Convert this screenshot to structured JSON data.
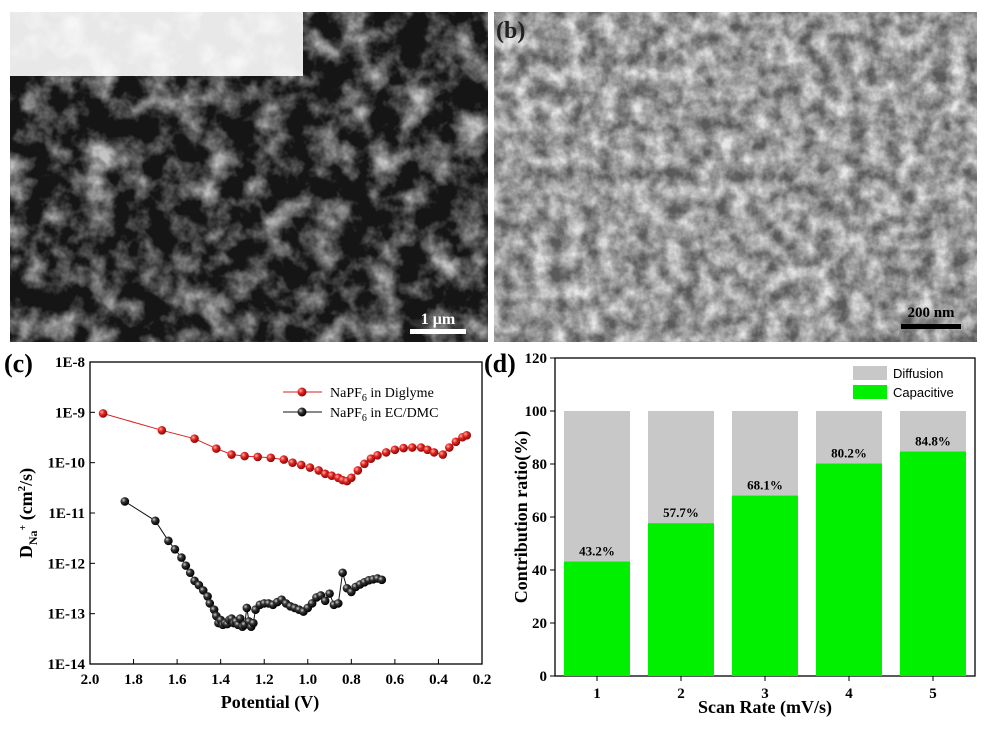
{
  "panels": {
    "a": {
      "label": "",
      "scale_bar": "1 μm"
    },
    "b": {
      "label": "(b)",
      "scale_bar": "200 nm"
    },
    "c": {
      "label": "(c)"
    },
    "d": {
      "label": "(d)"
    }
  },
  "chart_data": [
    {
      "type": "line",
      "panel": "c",
      "xlabel": "Potential (V)",
      "ylabel": "D_Na+ (cm²/s)",
      "xlim": [
        2.0,
        0.2
      ],
      "x_reversed": true,
      "ylim": [
        1e-14,
        1e-08
      ],
      "log_y": true,
      "x_ticks": [
        "2.0",
        "1.8",
        "1.6",
        "1.4",
        "1.2",
        "1.0",
        "0.8",
        "0.6",
        "0.4",
        "0.2"
      ],
      "y_ticks": [
        "1E-14",
        "1E-13",
        "1E-12",
        "1E-11",
        "1E-10",
        "1E-9",
        "1E-8"
      ],
      "legend_position": "top-right",
      "series": [
        {
          "name": "NaPF6 in Diglyme",
          "color": "#d9201e",
          "x": [
            1.94,
            1.67,
            1.52,
            1.42,
            1.35,
            1.29,
            1.23,
            1.17,
            1.11,
            1.07,
            1.03,
            0.99,
            0.95,
            0.92,
            0.89,
            0.86,
            0.84,
            0.82,
            0.8,
            0.77,
            0.74,
            0.71,
            0.68,
            0.64,
            0.6,
            0.56,
            0.52,
            0.48,
            0.45,
            0.42,
            0.38,
            0.35,
            0.32,
            0.29,
            0.27
          ],
          "y": [
            9.5e-10,
            4.4e-10,
            3e-10,
            1.9e-10,
            1.45e-10,
            1.35e-10,
            1.3e-10,
            1.25e-10,
            1.15e-10,
            1e-10,
            9e-11,
            8e-11,
            7e-11,
            6e-11,
            5.5e-11,
            5e-11,
            4.5e-11,
            4.3e-11,
            5e-11,
            7e-11,
            9.5e-11,
            1.2e-10,
            1.4e-10,
            1.6e-10,
            1.8e-10,
            1.95e-10,
            2e-10,
            2e-10,
            1.8e-10,
            1.6e-10,
            1.45e-10,
            2e-10,
            2.6e-10,
            3.2e-10,
            3.5e-10
          ]
        },
        {
          "name": "NaPF6 in EC/DMC",
          "color": "#111111",
          "x": [
            1.84,
            1.7,
            1.64,
            1.61,
            1.58,
            1.56,
            1.54,
            1.52,
            1.5,
            1.48,
            1.46,
            1.45,
            1.43,
            1.42,
            1.41,
            1.4,
            1.39,
            1.38,
            1.37,
            1.36,
            1.35,
            1.34,
            1.33,
            1.32,
            1.31,
            1.3,
            1.29,
            1.28,
            1.27,
            1.26,
            1.25,
            1.24,
            1.22,
            1.2,
            1.18,
            1.16,
            1.14,
            1.12,
            1.1,
            1.08,
            1.06,
            1.04,
            1.02,
            1.0,
            0.98,
            0.96,
            0.94,
            0.92,
            0.9,
            0.88,
            0.86,
            0.84,
            0.82,
            0.8,
            0.78,
            0.76,
            0.74,
            0.72,
            0.7,
            0.68,
            0.66
          ],
          "y": [
            1.7e-11,
            7e-12,
            2.8e-12,
            1.9e-12,
            1.3e-12,
            9e-13,
            6.5e-13,
            4.5e-13,
            3.7e-13,
            2.9e-13,
            2.2e-13,
            1.6e-13,
            1.2e-13,
            9e-14,
            6.5e-14,
            7.5e-14,
            6e-14,
            6.5e-14,
            6.2e-14,
            7.5e-14,
            8e-14,
            6.5e-14,
            7e-14,
            6e-14,
            8e-14,
            5.5e-14,
            6e-14,
            1.3e-13,
            7e-14,
            5.5e-14,
            6.5e-14,
            1.2e-13,
            1.5e-13,
            1.6e-13,
            1.6e-13,
            1.5e-13,
            1.7e-13,
            1.9e-13,
            1.6e-13,
            1.4e-13,
            1.3e-13,
            1.2e-13,
            1.1e-13,
            1.3e-13,
            1.6e-13,
            2.1e-13,
            2.3e-13,
            1.8e-13,
            2.5e-13,
            1.5e-13,
            1.6e-13,
            6.5e-13,
            3.2e-13,
            2.7e-13,
            3.4e-13,
            3.8e-13,
            4.2e-13,
            4.6e-13,
            4.8e-13,
            5e-13,
            4.7e-13
          ]
        }
      ]
    },
    {
      "type": "bar",
      "stacked": true,
      "panel": "d",
      "categories": [
        "1",
        "2",
        "3",
        "4",
        "5"
      ],
      "xlabel": "Scan Rate (mV/s)",
      "ylabel": "Contribution ratio(%)",
      "ylim": [
        0,
        120
      ],
      "y_ticks": [
        "0",
        "20",
        "40",
        "60",
        "80",
        "100",
        "120"
      ],
      "legend_position": "top-right",
      "series": [
        {
          "name": "Capacitive",
          "color": "#00f000",
          "values": [
            43.2,
            57.7,
            68.1,
            80.2,
            84.8
          ]
        },
        {
          "name": "Diffusion",
          "color": "#c8c8c8",
          "values": [
            56.8,
            42.3,
            31.9,
            19.8,
            15.2
          ]
        }
      ],
      "data_labels": [
        "43.2%",
        "57.7%",
        "68.1%",
        "80.2%",
        "84.8%"
      ]
    }
  ]
}
